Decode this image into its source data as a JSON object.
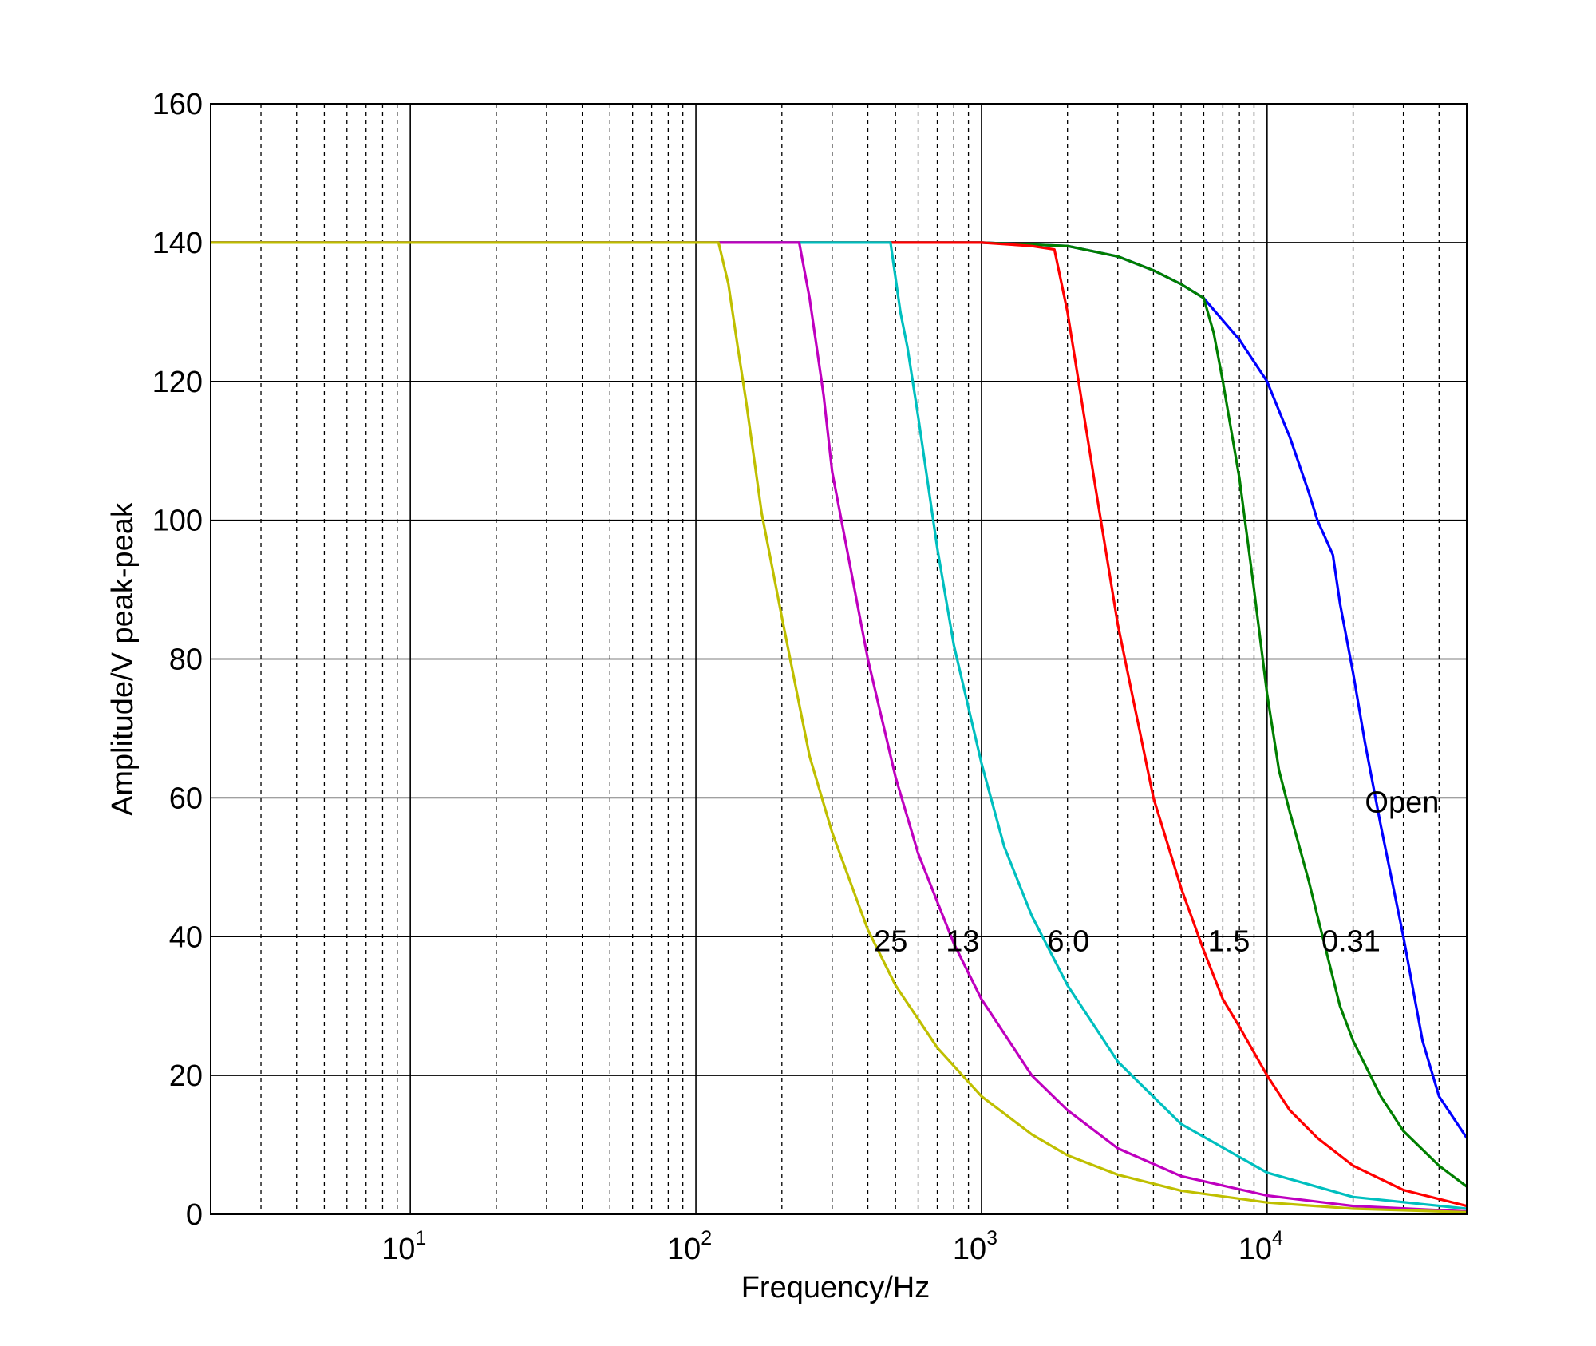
{
  "chart_data": {
    "type": "line",
    "title": "",
    "xlabel": "Frequency/Hz",
    "ylabel": "Amplitude/V peak-peak",
    "x_scale": "log",
    "xlim": [
      2,
      50000
    ],
    "ylim": [
      0,
      160
    ],
    "grid": true,
    "x_ticks": [
      {
        "base": "10",
        "exp": "1",
        "value": 10
      },
      {
        "base": "10",
        "exp": "2",
        "value": 100
      },
      {
        "base": "10",
        "exp": "3",
        "value": 1000
      },
      {
        "base": "10",
        "exp": "4",
        "value": 10000
      }
    ],
    "y_ticks": [
      "0",
      "20",
      "40",
      "60",
      "80",
      "100",
      "120",
      "140",
      "160"
    ],
    "series": [
      {
        "name": "Open",
        "color": "#0000ff",
        "label_pos": {
          "x": 22000,
          "y": 60
        },
        "x": [
          2,
          500,
          1000,
          2000,
          3000,
          4000,
          5000,
          6000,
          8000,
          10000,
          12000,
          14000,
          15000,
          17000,
          18000,
          20000,
          22000,
          25000,
          30000,
          35000,
          40000,
          50000
        ],
        "y": [
          140,
          140,
          140,
          139.5,
          138,
          136,
          134,
          132,
          126,
          120,
          112,
          104,
          100,
          95,
          88,
          78,
          68,
          56,
          40,
          25,
          17,
          11
        ]
      },
      {
        "name": "0.31",
        "color": "#007f00",
        "label_pos": {
          "x": 15500,
          "y": 40
        },
        "x": [
          2,
          500,
          1000,
          2000,
          3000,
          4000,
          5000,
          6000,
          6500,
          7000,
          8000,
          9000,
          10000,
          11000,
          12000,
          14000,
          15000,
          18000,
          20000,
          25000,
          30000,
          40000,
          50000
        ],
        "y": [
          140,
          140,
          140,
          139.5,
          138,
          136,
          134,
          132,
          127,
          120,
          106,
          90,
          75,
          64,
          58,
          48,
          43,
          30,
          25,
          17,
          12,
          7,
          4
        ]
      },
      {
        "name": "1.5",
        "color": "#ff0000",
        "label_pos": {
          "x": 6200,
          "y": 40
        },
        "x": [
          2,
          500,
          1000,
          1500,
          1800,
          2000,
          2500,
          3000,
          4000,
          5000,
          6000,
          7000,
          8000,
          10000,
          12000,
          15000,
          20000,
          30000,
          50000
        ],
        "y": [
          140,
          140,
          140,
          139.5,
          139,
          130,
          105,
          85,
          60,
          47,
          38,
          31,
          27,
          20,
          15,
          11,
          7,
          3.5,
          1.2
        ]
      },
      {
        "name": "6.0",
        "color": "#00bfbf",
        "label_pos": {
          "x": 1700,
          "y": 40
        },
        "x": [
          2,
          120,
          300,
          480,
          520,
          550,
          600,
          700,
          800,
          1000,
          1200,
          1500,
          2000,
          3000,
          5000,
          10000,
          20000,
          50000
        ],
        "y": [
          140,
          140,
          140,
          140,
          130,
          125,
          115,
          96,
          82,
          65,
          53,
          43,
          33,
          22,
          13,
          6,
          2.5,
          0.8
        ]
      },
      {
        "name": "13",
        "color": "#bf00bf",
        "label_pos": {
          "x": 750,
          "y": 40
        },
        "x": [
          2,
          120,
          200,
          230,
          250,
          280,
          300,
          400,
          500,
          600,
          800,
          1000,
          1500,
          2000,
          3000,
          5000,
          10000,
          20000,
          50000
        ],
        "y": [
          140,
          140,
          140,
          140,
          132,
          118,
          107,
          80,
          63,
          52,
          39,
          31,
          20,
          15,
          9.5,
          5.5,
          2.7,
          1.2,
          0.4
        ]
      },
      {
        "name": "25",
        "color": "#bfbf00",
        "label_pos": {
          "x": 420,
          "y": 40
        },
        "x": [
          2,
          100,
          120,
          130,
          140,
          150,
          170,
          200,
          250,
          300,
          400,
          500,
          700,
          1000,
          1500,
          2000,
          3000,
          5000,
          10000,
          20000,
          50000
        ],
        "y": [
          140,
          140,
          140,
          134,
          125,
          117,
          101,
          86,
          66,
          55,
          41,
          33,
          24,
          17,
          11.5,
          8.5,
          5.7,
          3.4,
          1.7,
          0.8,
          0.3
        ]
      }
    ]
  }
}
